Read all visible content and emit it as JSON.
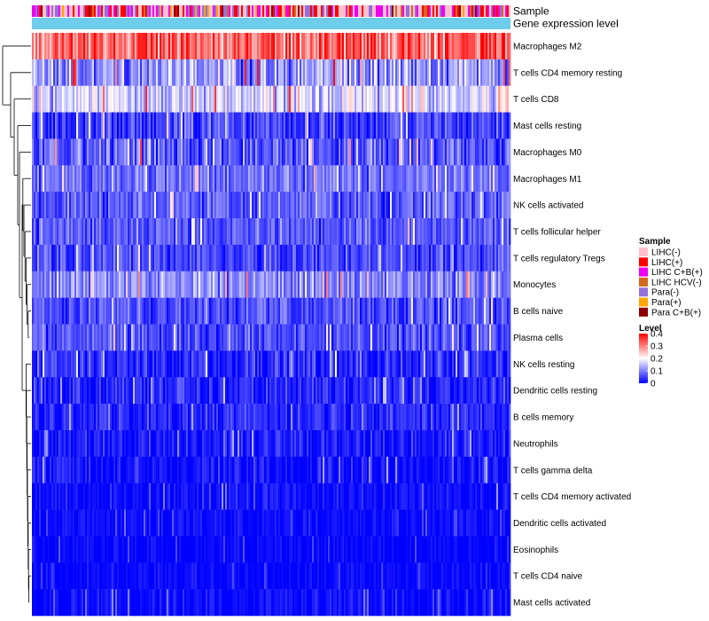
{
  "chart_data": {
    "type": "heatmap",
    "title": "",
    "column_annotations": [
      {
        "label": "Sample",
        "type": "categorical"
      },
      {
        "label": "Gene expression level",
        "type": "continuous",
        "color": "#6ecdea"
      }
    ],
    "rows": [
      {
        "name": "Macrophages M2",
        "mean": 0.31,
        "spread": 0.09
      },
      {
        "name": "T cells CD4 memory resting",
        "mean": 0.12,
        "spread": 0.08
      },
      {
        "name": "T cells CD8",
        "mean": 0.17,
        "spread": 0.07
      },
      {
        "name": "Mast cells resting",
        "mean": 0.05,
        "spread": 0.06
      },
      {
        "name": "Macrophages M0",
        "mean": 0.07,
        "spread": 0.07
      },
      {
        "name": "Macrophages M1",
        "mean": 0.09,
        "spread": 0.05
      },
      {
        "name": "NK cells activated",
        "mean": 0.07,
        "spread": 0.05
      },
      {
        "name": "T cells follicular helper",
        "mean": 0.07,
        "spread": 0.05
      },
      {
        "name": "T cells regulatory  Tregs",
        "mean": 0.06,
        "spread": 0.05
      },
      {
        "name": "Monocytes",
        "mean": 0.11,
        "spread": 0.06
      },
      {
        "name": "B cells naive",
        "mean": 0.06,
        "spread": 0.05
      },
      {
        "name": "Plasma cells",
        "mean": 0.06,
        "spread": 0.05
      },
      {
        "name": "NK cells resting",
        "mean": 0.03,
        "spread": 0.05
      },
      {
        "name": "Dendritic cells resting",
        "mean": 0.03,
        "spread": 0.04
      },
      {
        "name": "B cells memory",
        "mean": 0.03,
        "spread": 0.04
      },
      {
        "name": "Neutrophils",
        "mean": 0.02,
        "spread": 0.04
      },
      {
        "name": "T cells gamma delta",
        "mean": 0.01,
        "spread": 0.04
      },
      {
        "name": "T cells CD4 memory activated",
        "mean": 0.01,
        "spread": 0.03
      },
      {
        "name": "Dendritic cells activated",
        "mean": 0.01,
        "spread": 0.02
      },
      {
        "name": "Eosinophils",
        "mean": 0.005,
        "spread": 0.02
      },
      {
        "name": "T cells CD4 naive",
        "mean": 0.005,
        "spread": 0.02
      },
      {
        "name": "Mast cells activated",
        "mean": 0.01,
        "spread": 0.03
      }
    ],
    "columns_count": 270,
    "color_scale": {
      "range": [
        0,
        0.4
      ],
      "stops": [
        {
          "value": 0,
          "color": "#0000ff"
        },
        {
          "value": 0.2,
          "color": "#ffffff"
        },
        {
          "value": 0.4,
          "color": "#ff0000"
        }
      ]
    },
    "legends": {
      "sample": {
        "title": "Sample",
        "entries": [
          {
            "label": "LIHC(-)",
            "color": "#ffc0cb"
          },
          {
            "label": "LIHC(+)",
            "color": "#ff0000"
          },
          {
            "label": "LIHC C+B(+)",
            "color": "#ee00ee"
          },
          {
            "label": "LIHC HCV(-)",
            "color": "#d2691e"
          },
          {
            "label": "Para(-)",
            "color": "#9370db"
          },
          {
            "label": "Para(+)",
            "color": "#ffa500"
          },
          {
            "label": "Para C+B(+)",
            "color": "#8b0000"
          }
        ]
      },
      "level": {
        "title": "Level",
        "ticks": [
          {
            "value": 0.4,
            "label": "0.4"
          },
          {
            "value": 0.3,
            "label": "0.3"
          },
          {
            "value": 0.2,
            "label": "0.2"
          },
          {
            "value": 0.1,
            "label": "0.1"
          },
          {
            "value": 0,
            "label": "0"
          }
        ]
      }
    }
  }
}
